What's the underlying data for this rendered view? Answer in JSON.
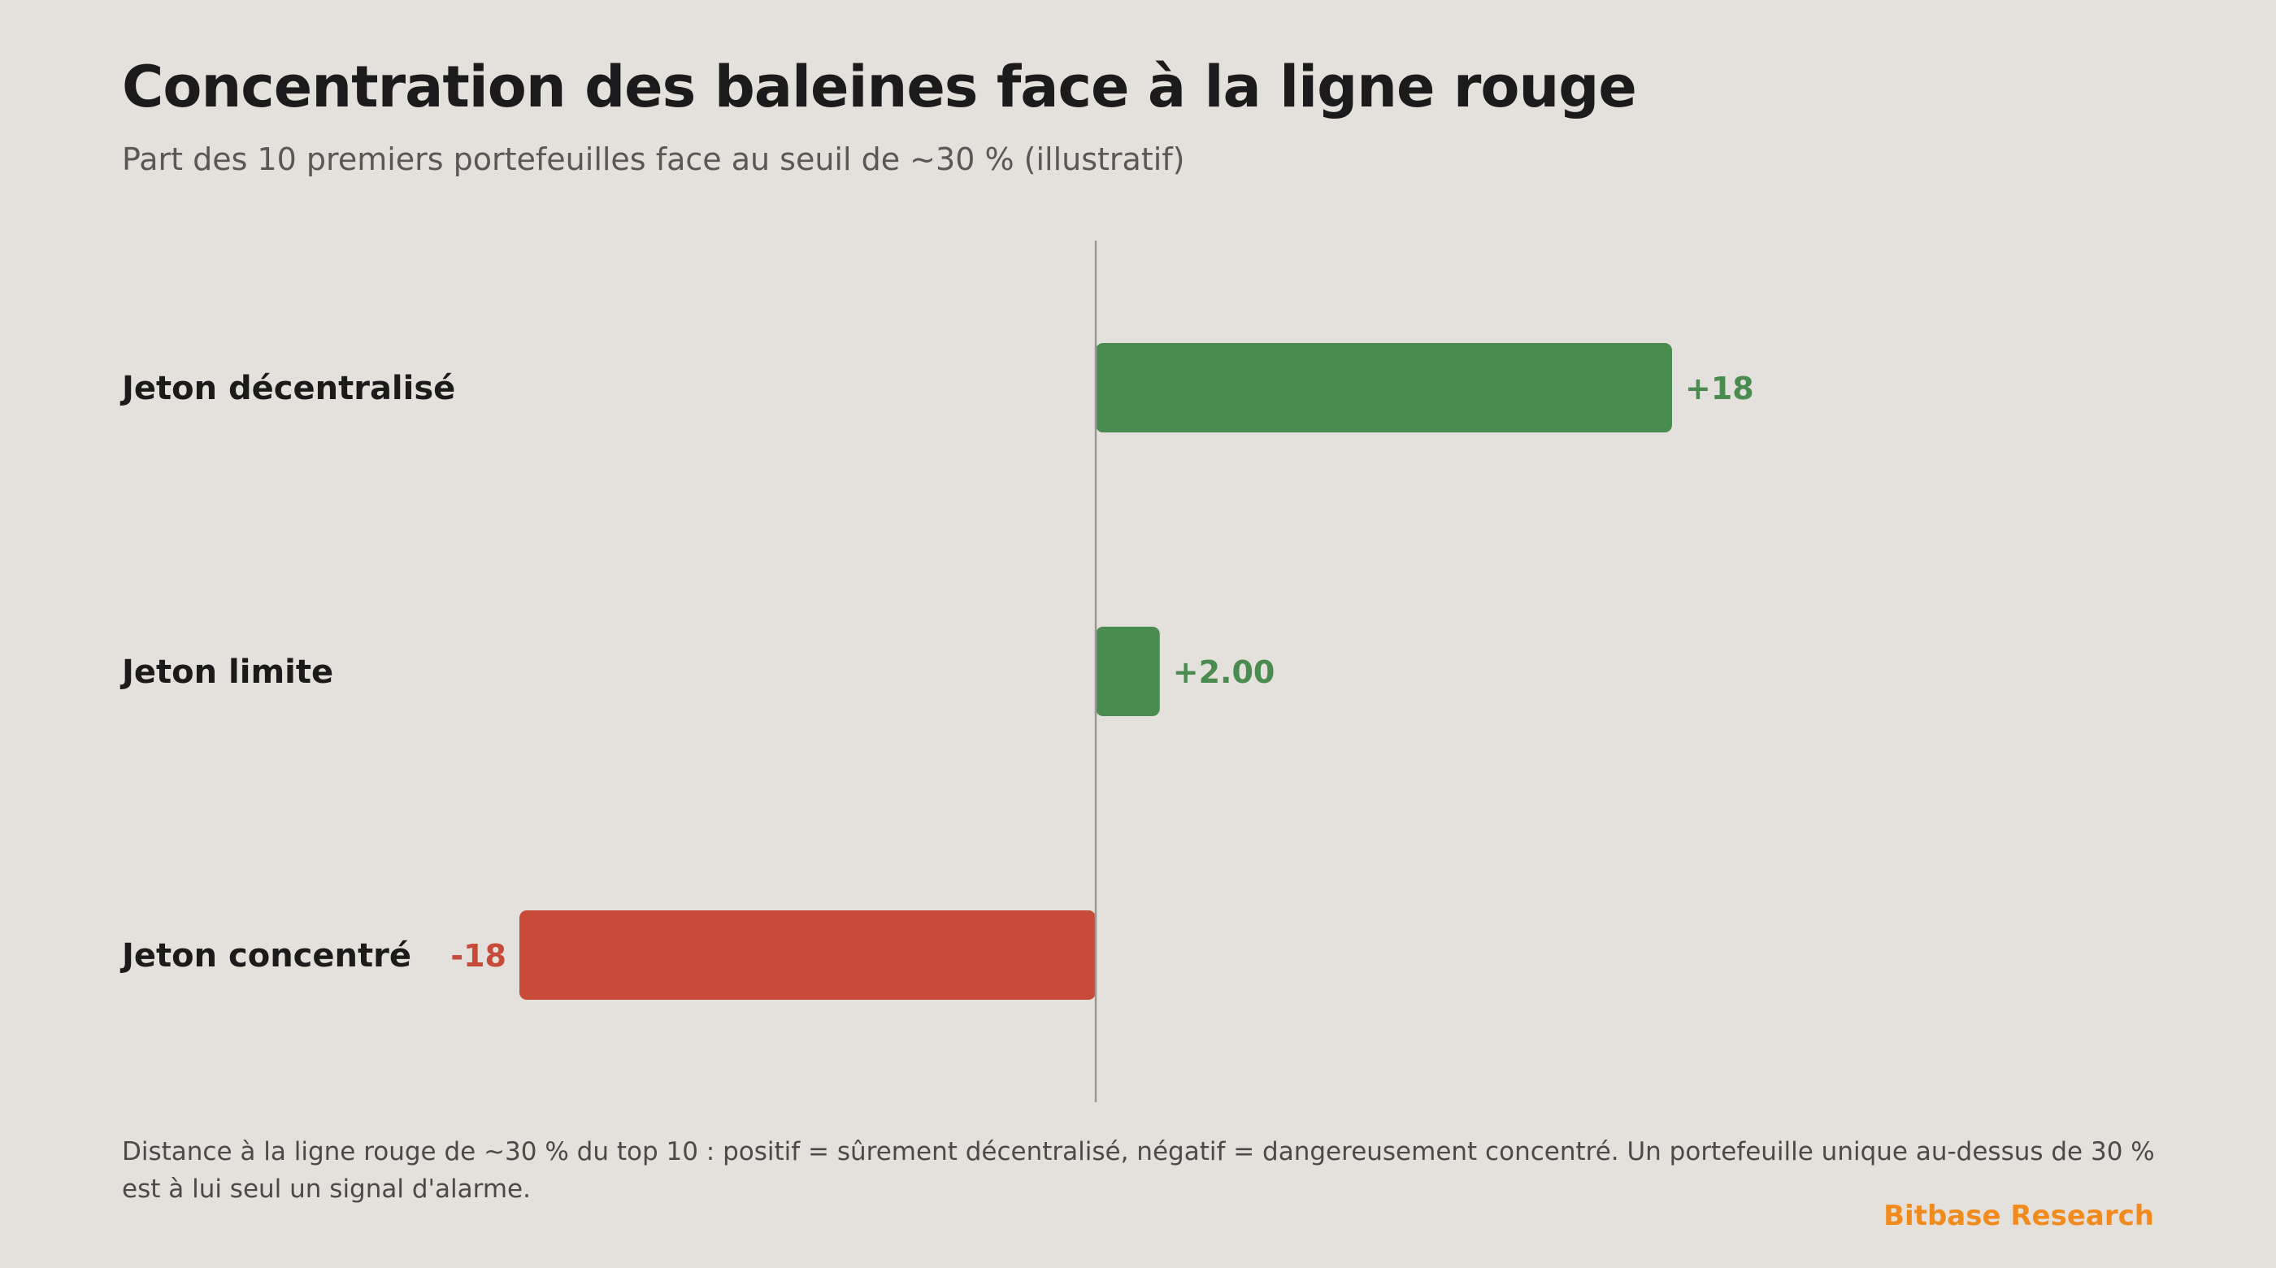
{
  "header": {
    "title": "Concentration des baleines face à la ligne rouge",
    "subtitle": "Part des 10 premiers portefeuilles face au seuil de ~30 % (illustratif)"
  },
  "footer": {
    "note": "Distance à la ligne rouge de ~30 % du top 10 : positif = sûrement décentralisé, négatif = dangereusement concentré. Un portefeuille unique au-dessus de 30 % est à lui seul un signal d'alarme.",
    "brand": "Bitbase Research"
  },
  "colors": {
    "positive": "#4a8c50",
    "negative": "#c84b3a",
    "axis": "#9a9894",
    "label": "#1b1b1b",
    "brand": "#f28b1e"
  },
  "chart_data": {
    "type": "bar",
    "orientation": "horizontal",
    "categories": [
      "Jeton décentralisé",
      "Jeton limite",
      "Jeton concentré"
    ],
    "values": [
      18,
      2,
      -18
    ],
    "value_labels": [
      "+18",
      "+2.00",
      "-18"
    ],
    "xlim": [
      -18,
      18
    ],
    "grid": false,
    "zero_line": true
  }
}
